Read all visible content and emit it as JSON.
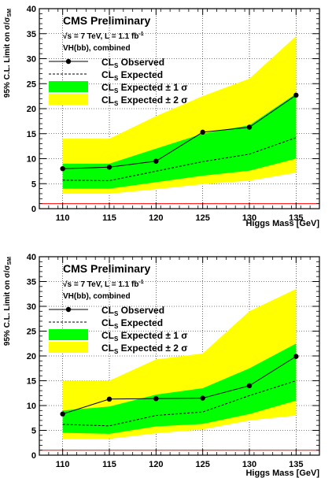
{
  "chart_data": [
    {
      "type": "line",
      "xlabel": "Higgs Mass [GeV]",
      "ylabel": "95% C.L. Limit on σ/σ_SM",
      "xlim": [
        107.5,
        137.5
      ],
      "ylim": [
        0,
        40
      ],
      "x_ticks": [
        110,
        115,
        120,
        125,
        130,
        135
      ],
      "y_ticks": [
        0,
        5,
        10,
        15,
        20,
        25,
        30,
        35,
        40
      ],
      "grid": true,
      "legend_position": "top-left",
      "text": {
        "title": "CMS Preliminary",
        "energy": "√s = 7 TeV, L = 1.1 fb",
        "energy_sup": "-1",
        "channel": "VH(bb), combined"
      },
      "legend": {
        "observed": "Observed",
        "expected": "Expected",
        "band1": "Expected ± 1 σ",
        "band2": "Expected ± 2 σ",
        "prefix": "CL",
        "prefix_sub": "S"
      },
      "reference_line": 1,
      "colors": {
        "band1": "#00ff00",
        "band2": "#ffff00",
        "reference": "#ff0000"
      },
      "x": [
        110,
        115,
        120,
        125,
        130,
        135
      ],
      "series": [
        {
          "name": "CLS Observed",
          "values": [
            8.0,
            8.3,
            9.5,
            15.3,
            16.3,
            22.7
          ]
        },
        {
          "name": "CLS Expected",
          "values": [
            5.7,
            5.6,
            7.5,
            9.4,
            10.9,
            14.2
          ]
        }
      ],
      "band_1sigma": {
        "low": [
          4.0,
          4.0,
          5.3,
          6.6,
          7.6,
          10.0
        ],
        "high": [
          9.0,
          9.0,
          12.0,
          15.0,
          16.7,
          23.0
        ]
      },
      "band_2sigma": {
        "low": [
          3.0,
          3.0,
          3.9,
          4.9,
          5.6,
          7.2
        ],
        "high": [
          14.0,
          14.0,
          18.5,
          22.5,
          26.0,
          34.5
        ]
      }
    },
    {
      "type": "line",
      "xlabel": "Higgs Mass [GeV]",
      "ylabel": "95% C.L. Limit on σ/σ_SM",
      "xlim": [
        107.5,
        137.5
      ],
      "ylim": [
        0,
        40
      ],
      "x_ticks": [
        110,
        115,
        120,
        125,
        130,
        135
      ],
      "y_ticks": [
        0,
        5,
        10,
        15,
        20,
        25,
        30,
        35,
        40
      ],
      "grid": true,
      "legend_position": "top-left",
      "text": {
        "title": "CMS Preliminary",
        "energy": "√s = 7 TeV, L = 1.1 fb",
        "energy_sup": "-1",
        "channel": "VH(bb), combined"
      },
      "legend": {
        "observed": "Observed",
        "expected": "Expected",
        "band1": "Expected ± 1 σ",
        "band2": "Expected ± 2 σ",
        "prefix": "CL",
        "prefix_sub": "S"
      },
      "reference_line": 1,
      "colors": {
        "band1": "#00ff00",
        "band2": "#ffff00",
        "reference": "#ff0000"
      },
      "x": [
        110,
        115,
        120,
        125,
        130,
        135
      ],
      "series": [
        {
          "name": "CLS Observed",
          "values": [
            8.3,
            11.3,
            11.4,
            11.5,
            14.0,
            19.9
          ]
        },
        {
          "name": "CLS Expected",
          "values": [
            6.2,
            5.9,
            8.0,
            8.7,
            12.0,
            15.0
          ]
        }
      ],
      "band_2sigma": {
        "low": [
          3.3,
          3.3,
          4.4,
          5.2,
          7.0,
          8.0
        ],
        "high": [
          15.0,
          15.0,
          19.3,
          20.5,
          29.0,
          33.5
        ]
      },
      "band_1sigma": {
        "low": [
          4.5,
          4.3,
          5.8,
          6.3,
          8.3,
          11.0
        ],
        "high": [
          9.0,
          9.8,
          12.2,
          13.5,
          17.5,
          22.5
        ]
      }
    }
  ]
}
